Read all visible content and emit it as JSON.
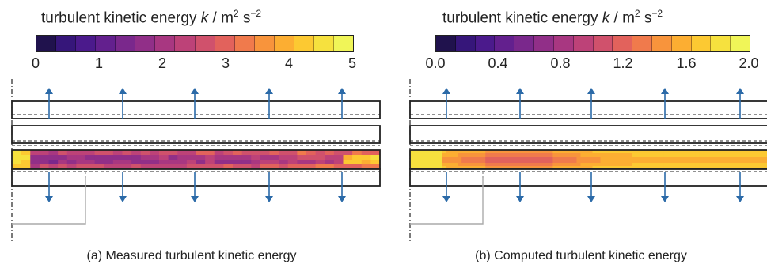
{
  "colormap": [
    "#20124d",
    "#36167a",
    "#4b1a8c",
    "#63208e",
    "#7a288c",
    "#912f88",
    "#a83781",
    "#bd4278",
    "#d0516c",
    "#e2625c",
    "#f07a4c",
    "#f8943c",
    "#fcae32",
    "#fcc932",
    "#f6e13e",
    "#f0f558"
  ],
  "panels": [
    {
      "colorbar_title": "turbulent kinetic energy",
      "colorbar_symbol": "k",
      "colorbar_unit": "/ m",
      "unit_exp1": "2",
      "unit_s": "s",
      "unit_exp2": "−2",
      "ticks": [
        "0",
        "1",
        "2",
        "3",
        "4",
        "5"
      ],
      "caption": "(a) Measured turbulent kinetic energy"
    },
    {
      "colorbar_title": "turbulent kinetic energy",
      "colorbar_symbol": "k",
      "colorbar_unit": "/ m",
      "unit_exp1": "2",
      "unit_s": "s",
      "unit_exp2": "−2",
      "ticks": [
        "0.0",
        "0.4",
        "0.8",
        "1.2",
        "1.6",
        "2.0"
      ],
      "caption": "(b) Computed turbulent kinetic energy"
    }
  ]
}
